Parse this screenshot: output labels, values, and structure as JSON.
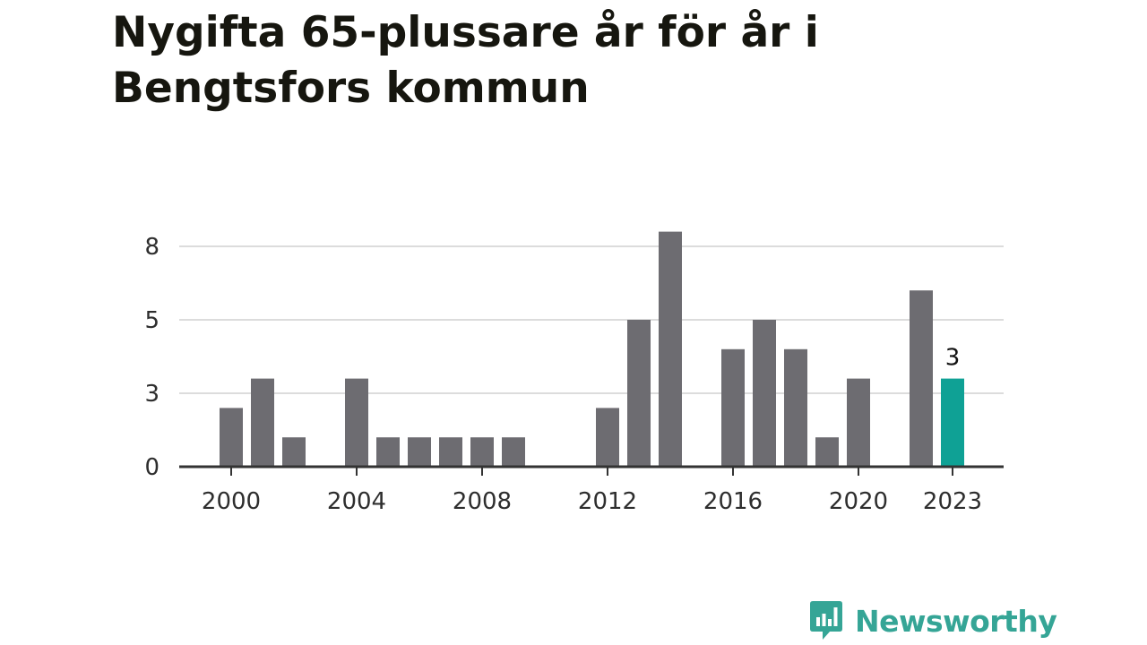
{
  "title": "Nygifta 65-plussare år för år i Bengtsfors kommun",
  "brand": {
    "name": "Newsworthy",
    "icon": "newsworthy-logo-icon",
    "color": "#35a596"
  },
  "colors": {
    "bar": "#6d6c71",
    "highlight": "#0fa195",
    "grid": "#dcdcdc",
    "axis": "#333333"
  },
  "chart_data": {
    "type": "bar",
    "categories": [
      "2000",
      "2001",
      "2002",
      "2003",
      "2004",
      "2005",
      "2006",
      "2007",
      "2008",
      "2009",
      "2010",
      "2011",
      "2012",
      "2013",
      "2014",
      "2015",
      "2016",
      "2017",
      "2018",
      "2019",
      "2020",
      "2021",
      "2022",
      "2023"
    ],
    "values": [
      2,
      3,
      1,
      0,
      3,
      1,
      1,
      1,
      1,
      1,
      0,
      0,
      2,
      5,
      8,
      0,
      4,
      5,
      4,
      1,
      3,
      0,
      6,
      3
    ],
    "ylim": [
      0,
      8
    ],
    "yticks": [
      {
        "value": 0,
        "label": "0"
      },
      {
        "value": 2.5,
        "label": "3"
      },
      {
        "value": 5,
        "label": "5"
      },
      {
        "value": 7.5,
        "label": "8"
      }
    ],
    "xticks": [
      "2000",
      "2004",
      "2008",
      "2012",
      "2016",
      "2020",
      "2023"
    ],
    "highlight": {
      "category": "2023",
      "label": "3"
    },
    "xlabel": "",
    "ylabel": "",
    "grid": true,
    "legend": "none"
  }
}
